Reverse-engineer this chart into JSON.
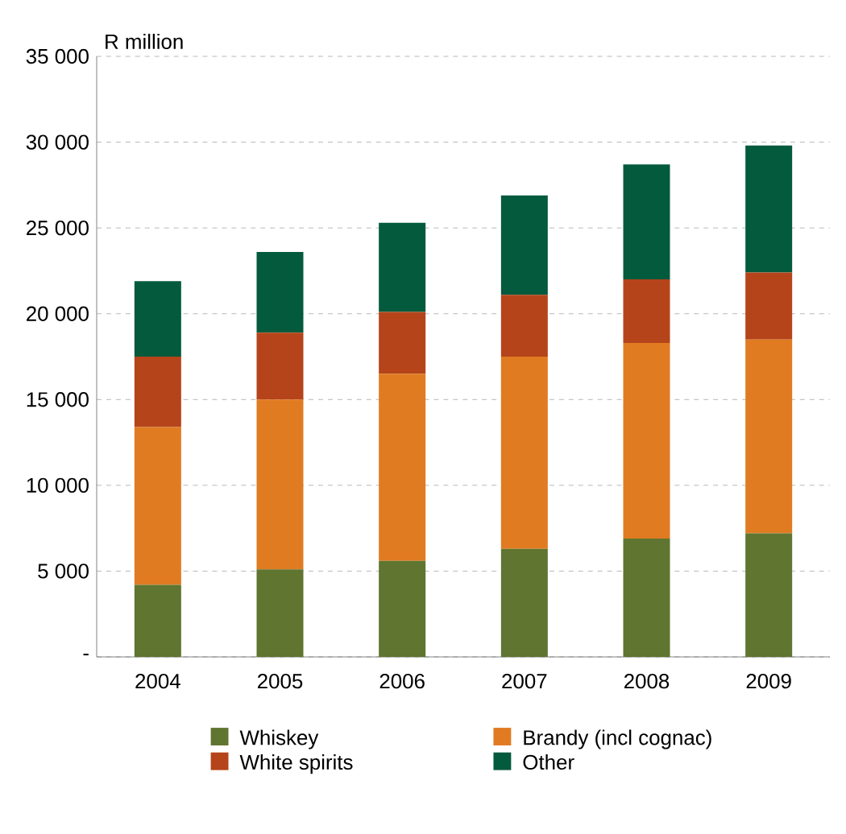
{
  "chart_data": {
    "type": "bar",
    "stacked": true,
    "ylabel": "R million",
    "categories": [
      "2004",
      "2005",
      "2006",
      "2007",
      "2008",
      "2009"
    ],
    "series": [
      {
        "name": "Whiskey",
        "color": "#5f7530",
        "values": [
          4200,
          5100,
          5600,
          6300,
          6900,
          7200
        ]
      },
      {
        "name": "Brandy (incl cognac)",
        "color": "#e07b22",
        "values": [
          9200,
          9900,
          10900,
          11200,
          11400,
          11300
        ]
      },
      {
        "name": "White spirits",
        "color": "#b5441a",
        "values": [
          4100,
          3900,
          3600,
          3600,
          3700,
          3900
        ]
      },
      {
        "name": "Other",
        "color": "#045a3c",
        "values": [
          4400,
          4700,
          5200,
          5800,
          6700,
          7400
        ]
      }
    ],
    "ylim": [
      0,
      35000
    ],
    "yticks": [
      {
        "value": 0,
        "label": "-"
      },
      {
        "value": 5000,
        "label": "5 000"
      },
      {
        "value": 10000,
        "label": "10 000"
      },
      {
        "value": 15000,
        "label": "15 000"
      },
      {
        "value": 20000,
        "label": "20 000"
      },
      {
        "value": 25000,
        "label": "25 000"
      },
      {
        "value": 30000,
        "label": "30 000"
      },
      {
        "value": 35000,
        "label": "35 000"
      }
    ],
    "grid": "y",
    "legend": "bottom"
  }
}
